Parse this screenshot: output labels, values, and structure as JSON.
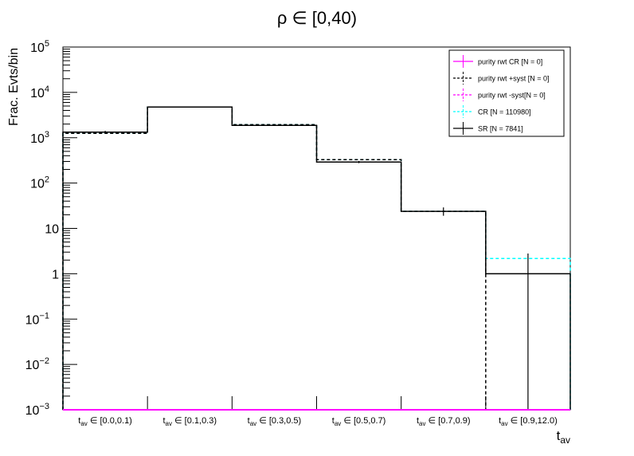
{
  "chart_data": {
    "type": "bar",
    "style": "step-histogram",
    "title": "ρ ∈ [0,40)",
    "xlabel": "t_av",
    "ylabel": "Frac. Evts/bin",
    "yscale": "log",
    "ylim": [
      0.001,
      100000
    ],
    "y_ticks": [
      {
        "base": "10",
        "exp": "5"
      },
      {
        "base": "10",
        "exp": "4"
      },
      {
        "base": "10",
        "exp": "3"
      },
      {
        "base": "10",
        "exp": "2"
      },
      {
        "base": "10",
        "exp": ""
      },
      {
        "base": "1",
        "exp": ""
      },
      {
        "base": "10",
        "exp": "−1"
      },
      {
        "base": "10",
        "exp": "−2"
      },
      {
        "base": "10",
        "exp": "−3"
      }
    ],
    "categories": [
      "[0.0,0.1)",
      "[0.1,0.3)",
      "[0.3,0.5)",
      "[0.5,0.7)",
      "[0.7,0.9)",
      "[0.9,12.0)"
    ],
    "category_prefix": "t",
    "category_sub": "av",
    "category_sym": "∈",
    "grid": false,
    "legend_position": "top-right",
    "series": [
      {
        "name": "purity rwt CR [N = 0]",
        "color": "#ff00ff",
        "dash": "solid",
        "values": [
          0,
          0,
          0,
          0,
          0,
          0
        ]
      },
      {
        "name": "purity rwt +syst [N = 0]",
        "color": "#000000",
        "dash": "dashed",
        "values": [
          1250,
          4750,
          1940,
          329,
          23.7,
          null
        ]
      },
      {
        "name": "purity rwt -syst[N = 0]",
        "color": "#ff00ff",
        "dash": "dashed",
        "values": [
          0,
          0,
          0,
          0,
          0,
          0
        ]
      },
      {
        "name": "CR [N = 110980]",
        "color": "#00ffff",
        "dash": "dashed",
        "values": [
          1250,
          4750,
          1940,
          329,
          23.7,
          2.17
        ]
      },
      {
        "name": "SR [N = 7841]",
        "color": "#000000",
        "dash": "solid",
        "values": [
          1330,
          4750,
          1870,
          291,
          23.7,
          1.0
        ],
        "errors": [
          [
            1240,
            1420
          ],
          [
            4650,
            4850
          ],
          [
            1830,
            1910
          ],
          [
            275,
            307
          ],
          [
            19,
            29
          ],
          [
            0.001,
            2.8
          ]
        ]
      }
    ]
  }
}
